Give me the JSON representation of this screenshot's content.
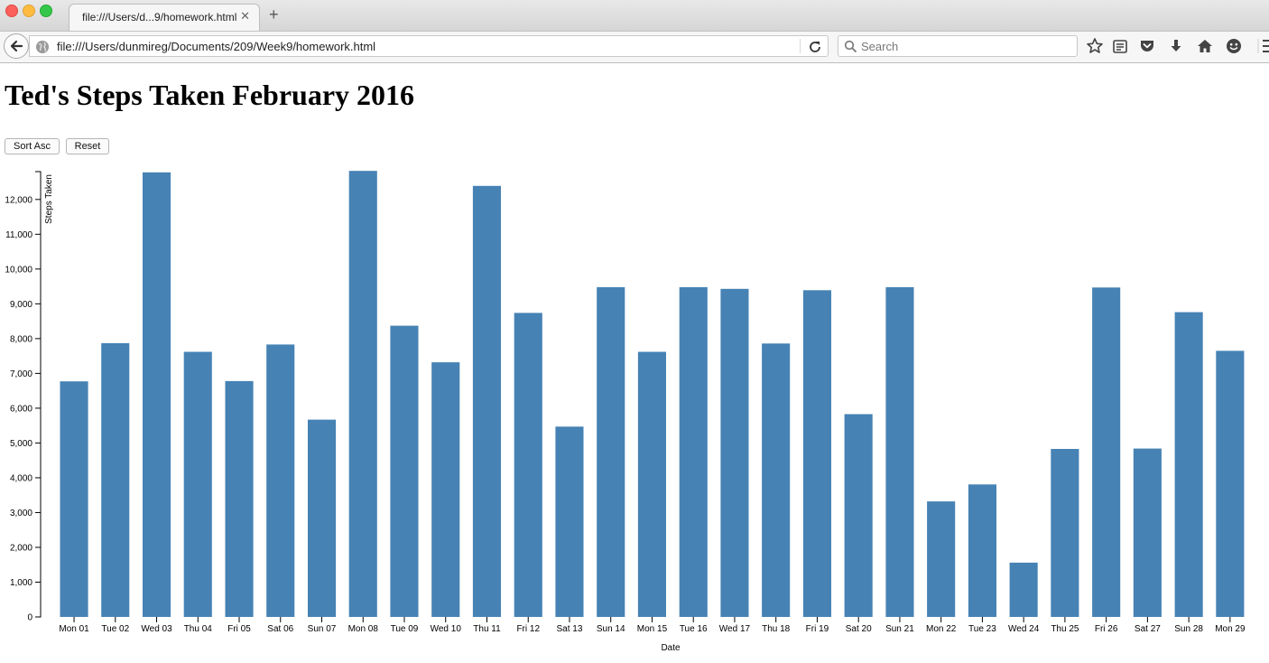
{
  "browser": {
    "tab_title": "file:///Users/d...9/homework.html",
    "tab_close": "✕",
    "new_tab": "+",
    "url": "file:///Users/dunmireg/Documents/209/Week9/homework.html",
    "search_placeholder": "Search",
    "toolbar_icons": [
      "bookmark-star-icon",
      "reading-list-icon",
      "pocket-icon",
      "download-icon",
      "home-icon",
      "hello-icon",
      "menu-icon"
    ]
  },
  "page": {
    "title": "Ted's Steps Taken February 2016",
    "sort_button": "Sort Asc",
    "reset_button": "Reset"
  },
  "chart_data": {
    "type": "bar",
    "title": "",
    "xlabel": "Date",
    "ylabel": "Steps Taken",
    "ylim": [
      0,
      12800
    ],
    "yticks": [
      0,
      1000,
      2000,
      3000,
      4000,
      5000,
      6000,
      7000,
      8000,
      9000,
      10000,
      11000,
      12000
    ],
    "ytick_labels": [
      "0",
      "1,000",
      "2,000",
      "3,000",
      "4,000",
      "5,000",
      "6,000",
      "7,000",
      "8,000",
      "9,000",
      "10,000",
      "11,000",
      "12,000"
    ],
    "categories": [
      "Mon 01",
      "Tue 02",
      "Wed 03",
      "Thu 04",
      "Fri 05",
      "Sat 06",
      "Sun 07",
      "Mon 08",
      "Tue 09",
      "Wed 10",
      "Thu 11",
      "Fri 12",
      "Sat 13",
      "Sun 14",
      "Mon 15",
      "Tue 16",
      "Wed 17",
      "Thu 18",
      "Fri 19",
      "Sat 20",
      "Sun 21",
      "Mon 22",
      "Tue 23",
      "Wed 24",
      "Thu 25",
      "Fri 26",
      "Sat 27",
      "Sun 28",
      "Mon 29"
    ],
    "values": [
      6770,
      7870,
      12780,
      7620,
      6780,
      7830,
      5670,
      12820,
      8370,
      7320,
      12390,
      8740,
      5470,
      9480,
      7620,
      9480,
      9430,
      7860,
      9390,
      5830,
      9480,
      3320,
      3810,
      1560,
      4830,
      9470,
      4840,
      8760,
      7650
    ],
    "bar_color": "#4682b4",
    "grid": false
  }
}
